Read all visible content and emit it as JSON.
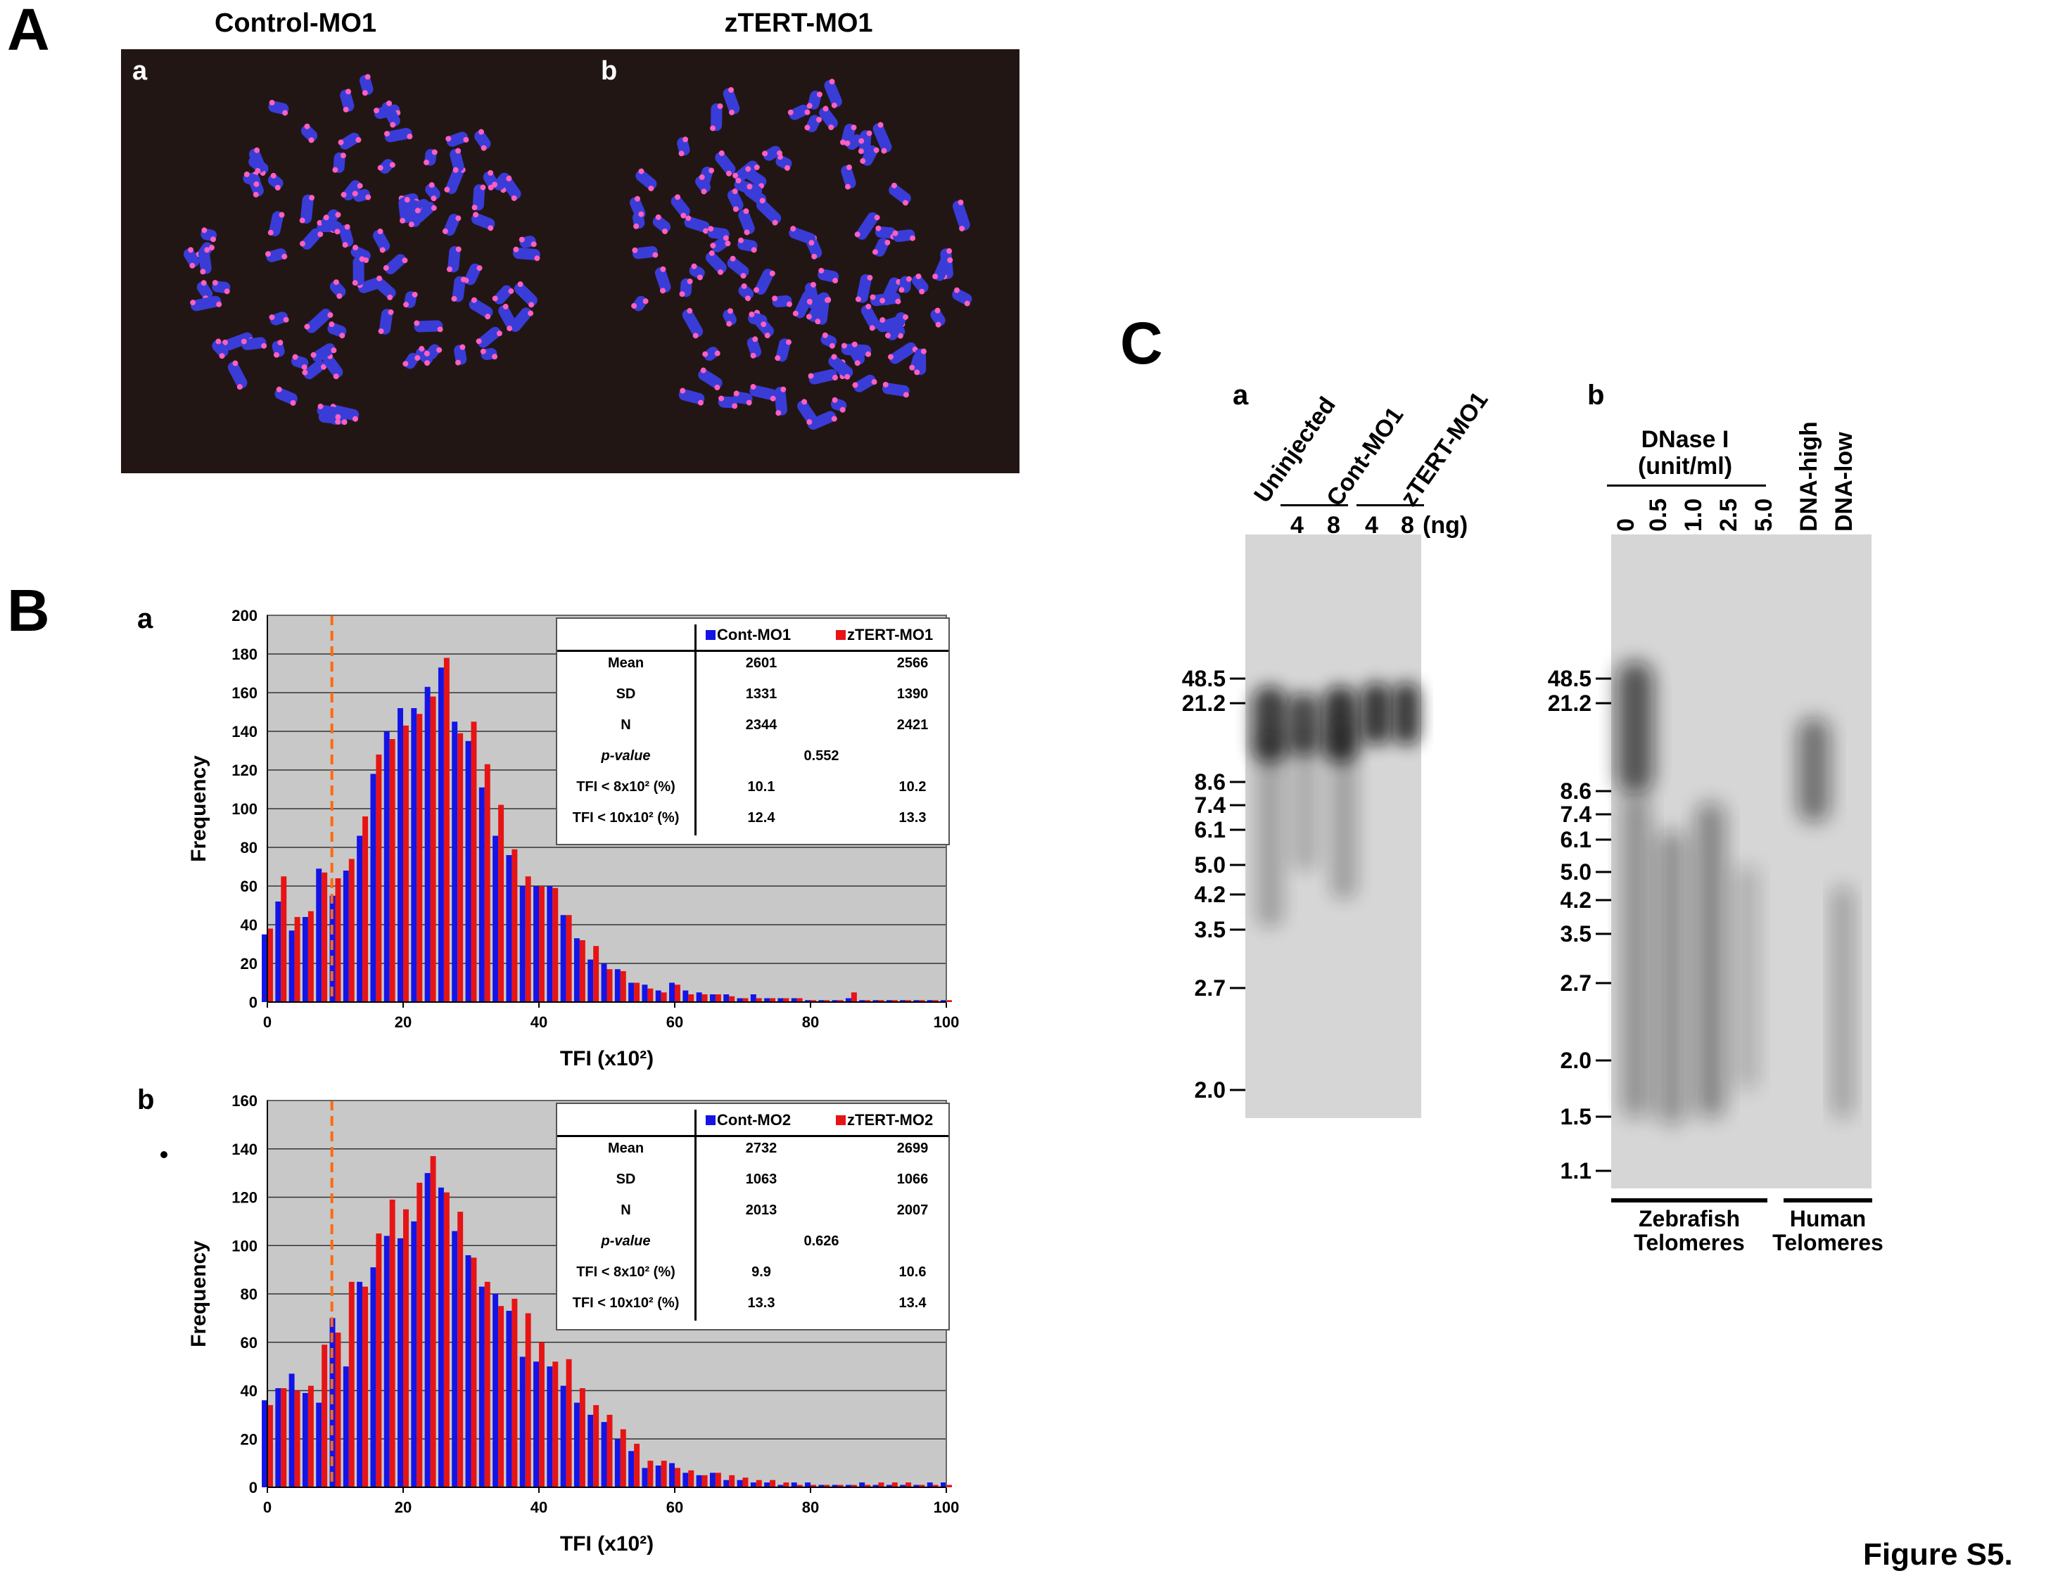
{
  "figure_label": "Figure S5.",
  "panelA": {
    "letter": "A",
    "images": [
      {
        "corner": "a",
        "title": "Control-MO1"
      },
      {
        "corner": "b",
        "title": "zTERT-MO1"
      }
    ]
  },
  "panelB": {
    "letter": "B",
    "charts": [
      {
        "letter": "a",
        "table": {
          "headers": [
            "",
            "Cont-MO1",
            "zTERT-MO1"
          ],
          "rows": [
            {
              "label": "Mean",
              "v1": "2601",
              "v2": "2566"
            },
            {
              "label": "SD",
              "v1": "1331",
              "v2": "1390"
            },
            {
              "label": "N",
              "v1": "2344",
              "v2": "2421"
            },
            {
              "label": "p-value",
              "mid": "0.552"
            },
            {
              "label": "TFI < 8x10² (%)",
              "v1": "10.1",
              "v2": "10.2"
            },
            {
              "label": "TFI < 10x10² (%)",
              "v1": "12.4",
              "v2": "13.3"
            }
          ]
        }
      },
      {
        "letter": "b",
        "table": {
          "headers": [
            "",
            "Cont-MO2",
            "zTERT-MO2"
          ],
          "rows": [
            {
              "label": "Mean",
              "v1": "2732",
              "v2": "2699"
            },
            {
              "label": "SD",
              "v1": "1063",
              "v2": "1066"
            },
            {
              "label": "N",
              "v1": "2013",
              "v2": "2007"
            },
            {
              "label": "p-value",
              "mid": "0.626"
            },
            {
              "label": "TFI < 8x10² (%)",
              "v1": "9.9",
              "v2": "10.6"
            },
            {
              "label": "TFI < 10x10² (%)",
              "v1": "13.3",
              "v2": "13.4"
            }
          ]
        }
      }
    ]
  },
  "chart_data": [
    {
      "type": "bar",
      "xlabel": "TFI (x10²)",
      "ylabel": "Frequency",
      "ylim": [
        0,
        200
      ],
      "yticks": [
        0,
        20,
        40,
        60,
        80,
        100,
        120,
        140,
        160,
        180,
        200
      ],
      "xlim": [
        0,
        100
      ],
      "xticks": [
        0,
        20,
        40,
        60,
        80,
        100
      ],
      "threshold_x": 9.5,
      "grid": true,
      "legend": "top-right",
      "x": [
        0,
        2,
        4,
        6,
        8,
        10,
        12,
        14,
        16,
        18,
        20,
        22,
        24,
        26,
        28,
        30,
        32,
        34,
        36,
        38,
        40,
        42,
        44,
        46,
        48,
        50,
        52,
        54,
        56,
        58,
        60,
        62,
        64,
        66,
        68,
        70,
        72,
        74,
        76,
        78,
        80,
        82,
        84,
        86,
        88,
        90,
        92,
        94,
        96,
        98,
        100
      ],
      "series": [
        {
          "name": "Cont-MO1",
          "color": "#1414e6",
          "values": [
            35,
            52,
            37,
            44,
            69,
            55,
            68,
            86,
            118,
            140,
            152,
            152,
            163,
            173,
            145,
            135,
            111,
            86,
            76,
            60,
            60,
            60,
            45,
            33,
            22,
            20,
            17,
            10,
            9,
            6,
            10,
            6,
            5,
            4,
            4,
            2,
            4,
            2,
            2,
            2,
            1,
            1,
            1,
            2,
            1,
            1,
            1,
            1,
            1,
            1,
            1
          ]
        },
        {
          "name": "zTERT-MO1",
          "color": "#e61414",
          "values": [
            38,
            65,
            44,
            47,
            67,
            64,
            74,
            96,
            128,
            136,
            143,
            149,
            158,
            178,
            139,
            145,
            123,
            102,
            79,
            65,
            60,
            59,
            45,
            32,
            29,
            17,
            16,
            10,
            7,
            5,
            9,
            4,
            4,
            4,
            3,
            2,
            2,
            2,
            2,
            2,
            1,
            1,
            1,
            5,
            1,
            1,
            1,
            1,
            1,
            1,
            1
          ]
        }
      ]
    },
    {
      "type": "bar",
      "xlabel": "TFI (x10²)",
      "ylabel": "Frequency",
      "ylim": [
        0,
        160
      ],
      "yticks": [
        0,
        20,
        40,
        60,
        80,
        100,
        120,
        140,
        160
      ],
      "xlim": [
        0,
        100
      ],
      "xticks": [
        0,
        20,
        40,
        60,
        80,
        100
      ],
      "threshold_x": 9.5,
      "grid": true,
      "legend": "top-right",
      "x": [
        0,
        2,
        4,
        6,
        8,
        10,
        12,
        14,
        16,
        18,
        20,
        22,
        24,
        26,
        28,
        30,
        32,
        34,
        36,
        38,
        40,
        42,
        44,
        46,
        48,
        50,
        52,
        54,
        56,
        58,
        60,
        62,
        64,
        66,
        68,
        70,
        72,
        74,
        76,
        78,
        80,
        82,
        84,
        86,
        88,
        90,
        92,
        94,
        96,
        98,
        100
      ],
      "series": [
        {
          "name": "Cont-MO2",
          "color": "#1414e6",
          "values": [
            36,
            41,
            47,
            39,
            35,
            70,
            50,
            85,
            91,
            104,
            103,
            110,
            130,
            124,
            106,
            96,
            83,
            80,
            73,
            54,
            52,
            50,
            42,
            35,
            30,
            27,
            20,
            15,
            8,
            9,
            10,
            6,
            5,
            6,
            3,
            3,
            2,
            2,
            1,
            2,
            2,
            1,
            1,
            1,
            2,
            1,
            1,
            1,
            1,
            2,
            2
          ]
        },
        {
          "name": "zTERT-MO2",
          "color": "#e61414",
          "values": [
            34,
            41,
            40,
            42,
            59,
            64,
            85,
            83,
            105,
            119,
            115,
            126,
            137,
            122,
            114,
            95,
            85,
            75,
            78,
            72,
            60,
            52,
            53,
            41,
            34,
            30,
            24,
            18,
            11,
            11,
            8,
            7,
            5,
            6,
            5,
            4,
            3,
            3,
            2,
            1,
            1,
            1,
            1,
            1,
            1,
            2,
            2,
            2,
            1,
            1,
            1
          ]
        }
      ]
    }
  ],
  "panelC": {
    "letter": "C",
    "gelA": {
      "letter": "a",
      "lanes": [
        "Uninjected",
        "Cont-MO1",
        "zTERT-MO1"
      ],
      "doses": [
        "4",
        "8",
        "4",
        "8"
      ],
      "dose_unit": "(ng)",
      "markers": [
        "48.5",
        "21.2",
        "8.6",
        "7.4",
        "6.1",
        "5.0",
        "4.2",
        "3.5",
        "2.7",
        "2.0"
      ]
    },
    "gelB": {
      "letter": "b",
      "header_line1": "DNase I",
      "header_line2": "(unit/ml)",
      "lanes": [
        "0",
        "0.5",
        "1.0",
        "2.5",
        "5.0",
        "DNA-high",
        "DNA-low"
      ],
      "markers": [
        "48.5",
        "21.2",
        "8.6",
        "7.4",
        "6.1",
        "5.0",
        "4.2",
        "3.5",
        "2.7",
        "2.0",
        "1.5",
        "1.1"
      ],
      "group1": [
        "Zebrafish",
        "Telomeres"
      ],
      "group2": [
        "Human",
        "Telomeres"
      ]
    }
  }
}
